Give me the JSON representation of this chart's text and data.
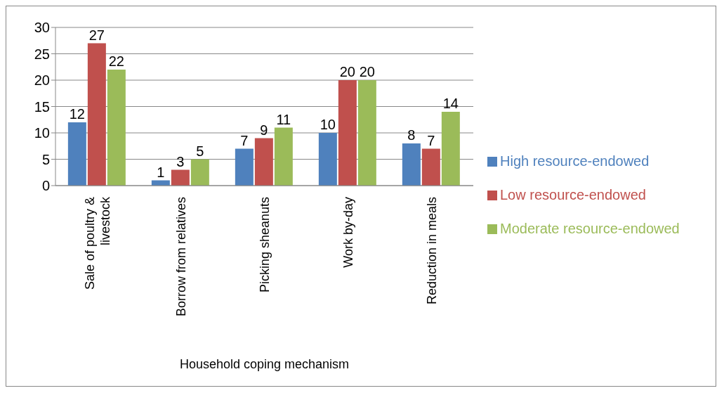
{
  "chart_data": {
    "type": "bar",
    "xlabel": "Household coping mechanism",
    "categories": [
      "Sale of poultry & livestock",
      "Borrow from relatives",
      "Picking sheanuts",
      "Work by-day",
      "Reduction in meals"
    ],
    "series": [
      {
        "name": "High resource-endowed",
        "color": "#4f81bd",
        "values": [
          12,
          1,
          7,
          10,
          8
        ]
      },
      {
        "name": "Low resource-endowed",
        "color": "#c0504d",
        "values": [
          27,
          3,
          9,
          20,
          7
        ]
      },
      {
        "name": "Moderate resource-endowed",
        "color": "#9bbb59",
        "values": [
          22,
          5,
          11,
          20,
          14
        ]
      }
    ],
    "ylim": [
      0,
      30
    ],
    "yticks": [
      0,
      5,
      10,
      15,
      20,
      25,
      30
    ],
    "grid": "y",
    "legend": "right",
    "data_labels": true
  }
}
